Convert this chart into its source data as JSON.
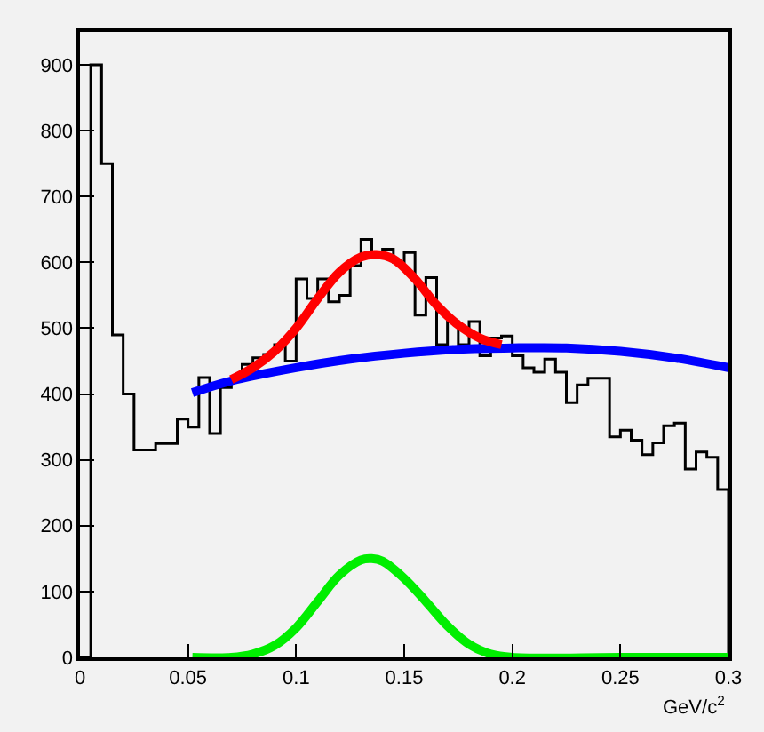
{
  "chart_data": {
    "type": "histogram",
    "xlabel": "GeV/c$^{2}$",
    "bins": [
      0,
      0.005,
      0.01,
      0.015,
      0.02,
      0.025,
      0.03,
      0.035,
      0.04,
      0.045,
      0.05,
      0.055,
      0.06,
      0.065,
      0.07,
      0.075,
      0.08,
      0.085,
      0.09,
      0.095,
      0.1,
      0.105,
      0.11,
      0.115,
      0.12,
      0.125,
      0.13,
      0.135,
      0.14,
      0.145,
      0.15,
      0.155,
      0.16,
      0.165,
      0.17,
      0.175,
      0.18,
      0.185,
      0.19,
      0.195,
      0.2,
      0.205,
      0.21,
      0.215,
      0.22,
      0.225,
      0.23,
      0.235,
      0.24,
      0.245,
      0.25,
      0.255,
      0.26,
      0.265,
      0.27,
      0.275,
      0.28,
      0.285,
      0.29,
      0.295,
      0.3
    ],
    "values": [
      0,
      900,
      750,
      490,
      400,
      315,
      315,
      325,
      325,
      362,
      350,
      425,
      340,
      410,
      420,
      445,
      455,
      460,
      475,
      450,
      575,
      545,
      575,
      540,
      550,
      595,
      635,
      612,
      620,
      600,
      615,
      520,
      577,
      475,
      510,
      475,
      510,
      458,
      485,
      488,
      458,
      440,
      433,
      453,
      433,
      387,
      414,
      424,
      424,
      335,
      345,
      330,
      308,
      326,
      352,
      356,
      286,
      312,
      304,
      255
    ],
    "color": "#000000",
    "series": [
      {
        "type": "line",
        "color": "#0000ff",
        "x": [
          0.052,
          0.07,
          0.1,
          0.125,
          0.15,
          0.175,
          0.2,
          0.225,
          0.25,
          0.275,
          0.3
        ],
        "values": [
          402,
          420,
          440,
          453,
          462,
          468,
          470,
          470,
          465,
          455,
          440
        ]
      },
      {
        "type": "line",
        "color": "#ff0000",
        "x": [
          0.07,
          0.08,
          0.09,
          0.1,
          0.11,
          0.12,
          0.13,
          0.137,
          0.145,
          0.155,
          0.165,
          0.175,
          0.185,
          0.195
        ],
        "values": [
          422,
          440,
          465,
          500,
          545,
          585,
          608,
          612,
          605,
          575,
          535,
          505,
          485,
          475
        ]
      },
      {
        "type": "line",
        "color": "#00ee00",
        "x": [
          0.052,
          0.07,
          0.08,
          0.09,
          0.1,
          0.11,
          0.12,
          0.13,
          0.135,
          0.14,
          0.15,
          0.16,
          0.17,
          0.18,
          0.19,
          0.2,
          0.25,
          0.3
        ],
        "values": [
          0,
          0,
          5,
          18,
          45,
          85,
          125,
          148,
          150,
          146,
          120,
          85,
          48,
          20,
          5,
          0,
          0,
          0
        ]
      }
    ],
    "xlim": [
      0,
      0.3
    ],
    "xticks": [
      0,
      0.05,
      0.1,
      0.15,
      0.2,
      0.25,
      0.3
    ],
    "ylim": [
      0,
      950
    ],
    "yticks": [
      0,
      100,
      200,
      300,
      400,
      500,
      600,
      700,
      800,
      900
    ],
    "grid": false
  }
}
